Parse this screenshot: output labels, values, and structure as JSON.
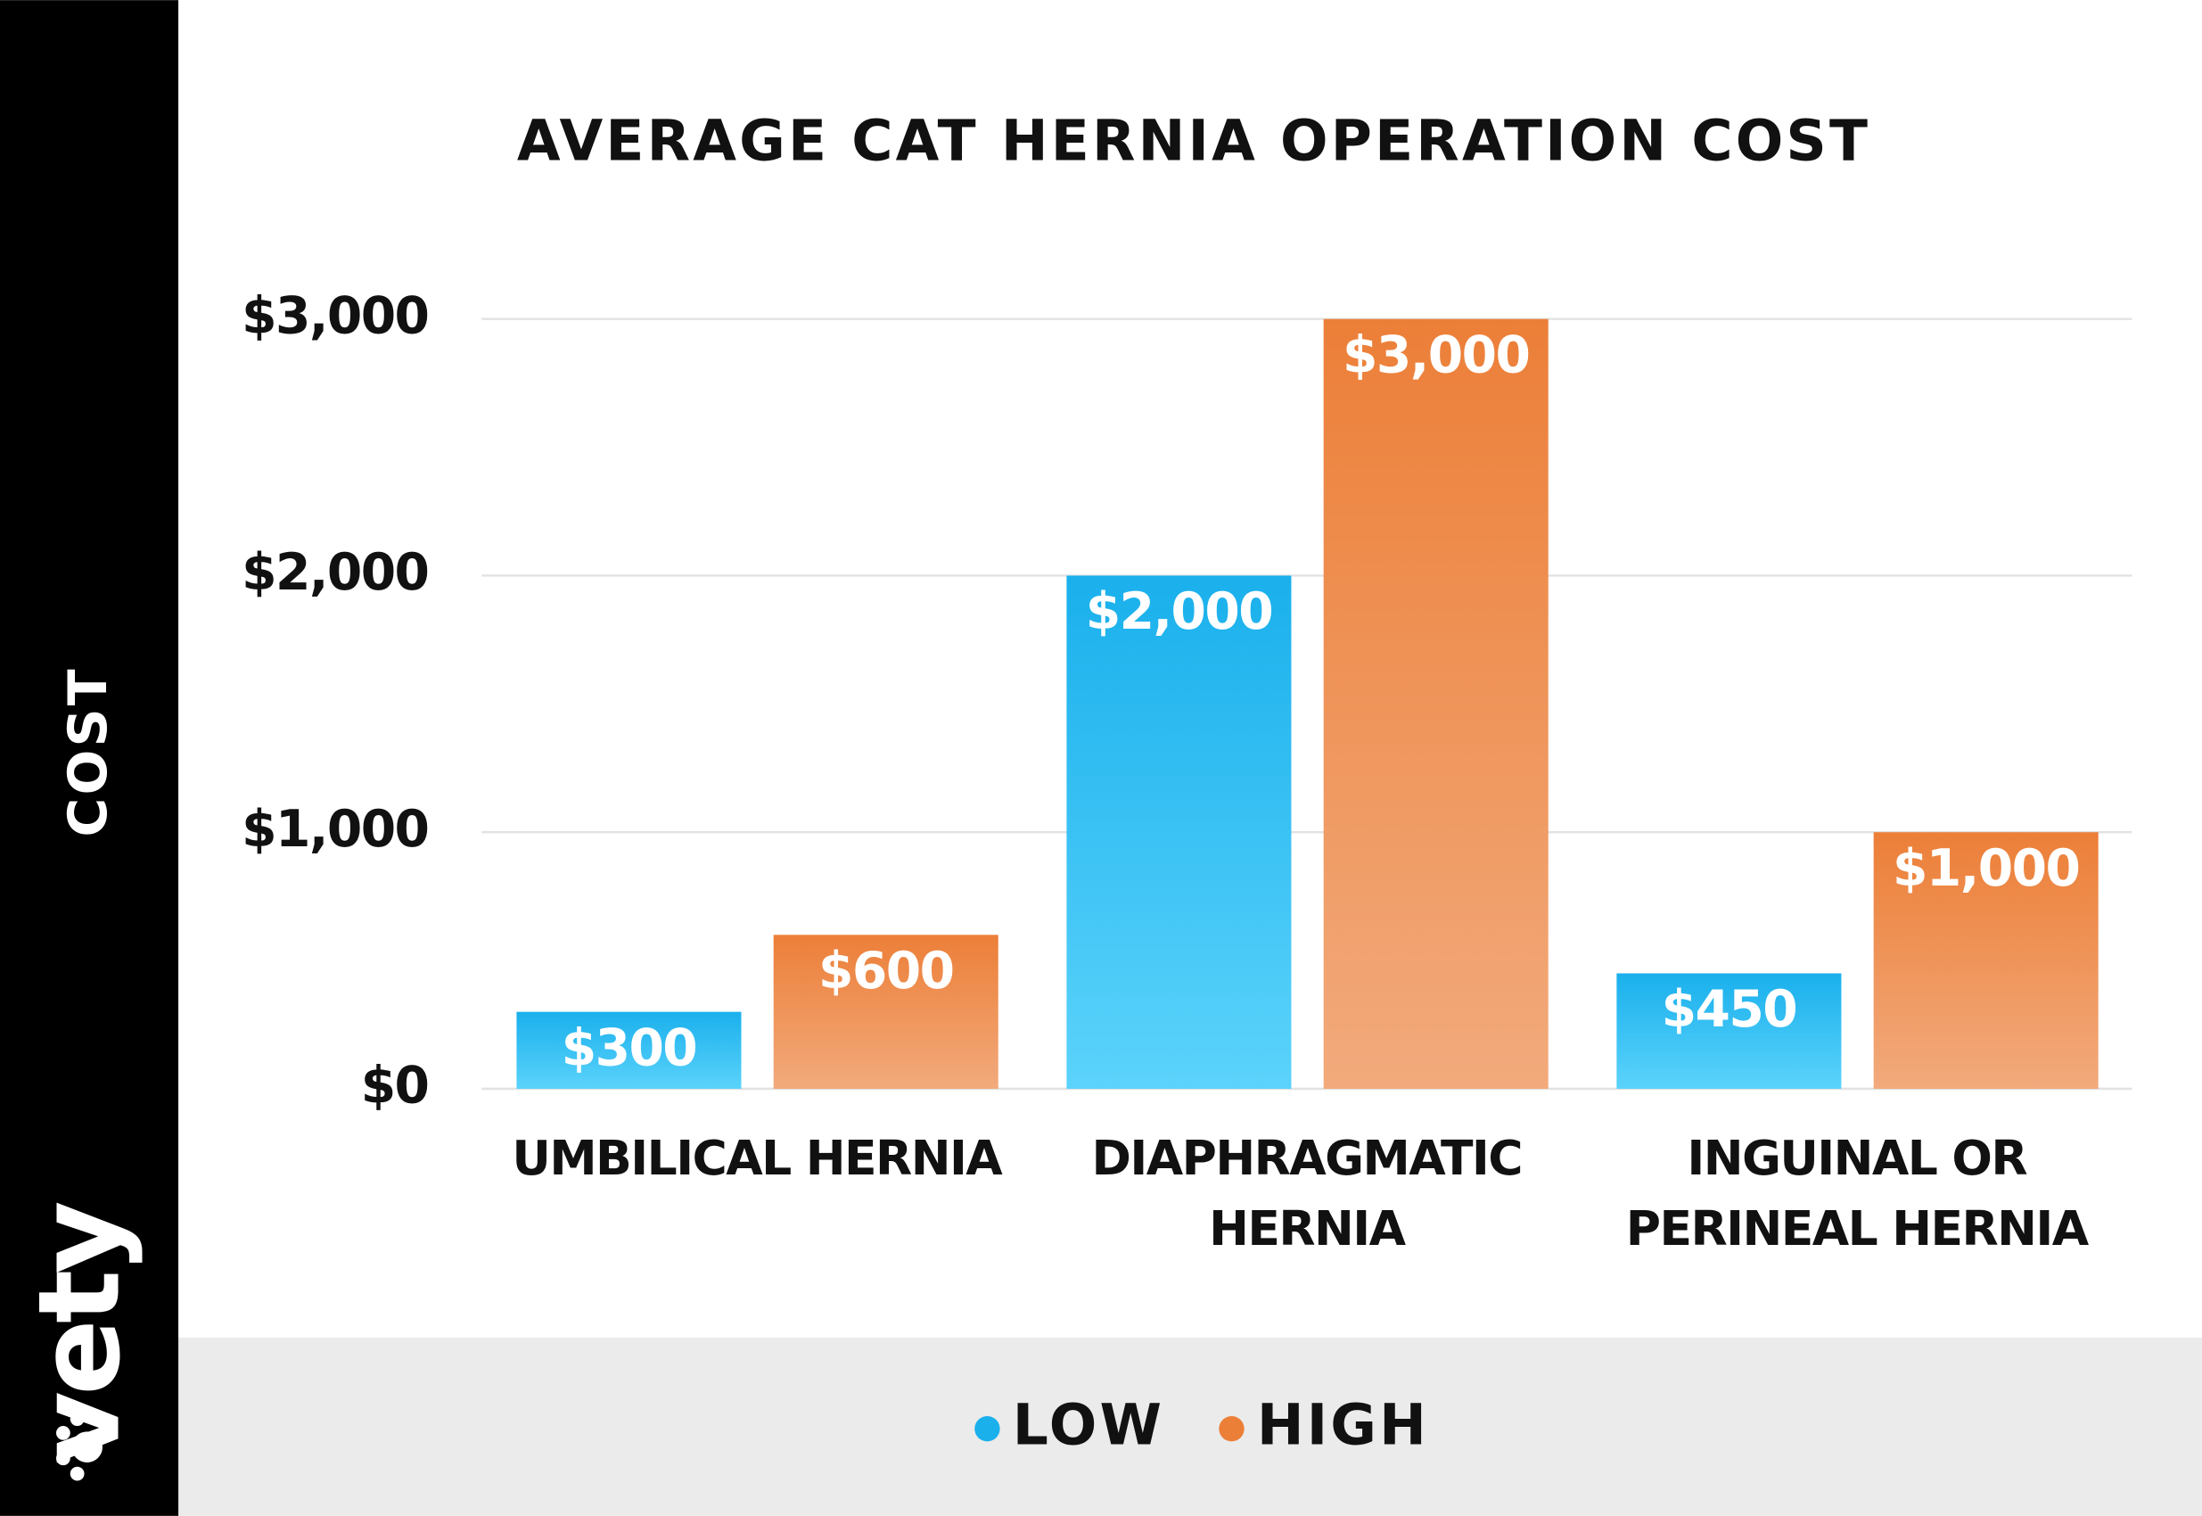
{
  "chart_data": {
    "type": "bar",
    "title": "AVERAGE CAT HERNIA OPERATION COST",
    "y_label": "COST",
    "brand": "vety",
    "categories": [
      "UMBILICAL HERNIA",
      "DIAPHRAGMATIC\nHERNIA",
      "INGUINAL OR\nPERINEAL HERNIA"
    ],
    "series": [
      {
        "name": "LOW",
        "color": "#1ab0ec",
        "values": [
          300,
          2000,
          450
        ],
        "value_labels": [
          "$300",
          "$2,000",
          "$450"
        ]
      },
      {
        "name": "HIGH",
        "color": "#ec7f38",
        "values": [
          600,
          3000,
          1000
        ],
        "value_labels": [
          "$600",
          "$3,000",
          "$1,000"
        ]
      }
    ],
    "ylim": [
      0,
      3000
    ],
    "yticks": [
      {
        "value": 0,
        "label": "$0"
      },
      {
        "value": 1000,
        "label": "$1,000"
      },
      {
        "value": 2000,
        "label": "$2,000"
      },
      {
        "value": 3000,
        "label": "$3,000"
      }
    ],
    "grid": true,
    "legend": "bottom"
  }
}
